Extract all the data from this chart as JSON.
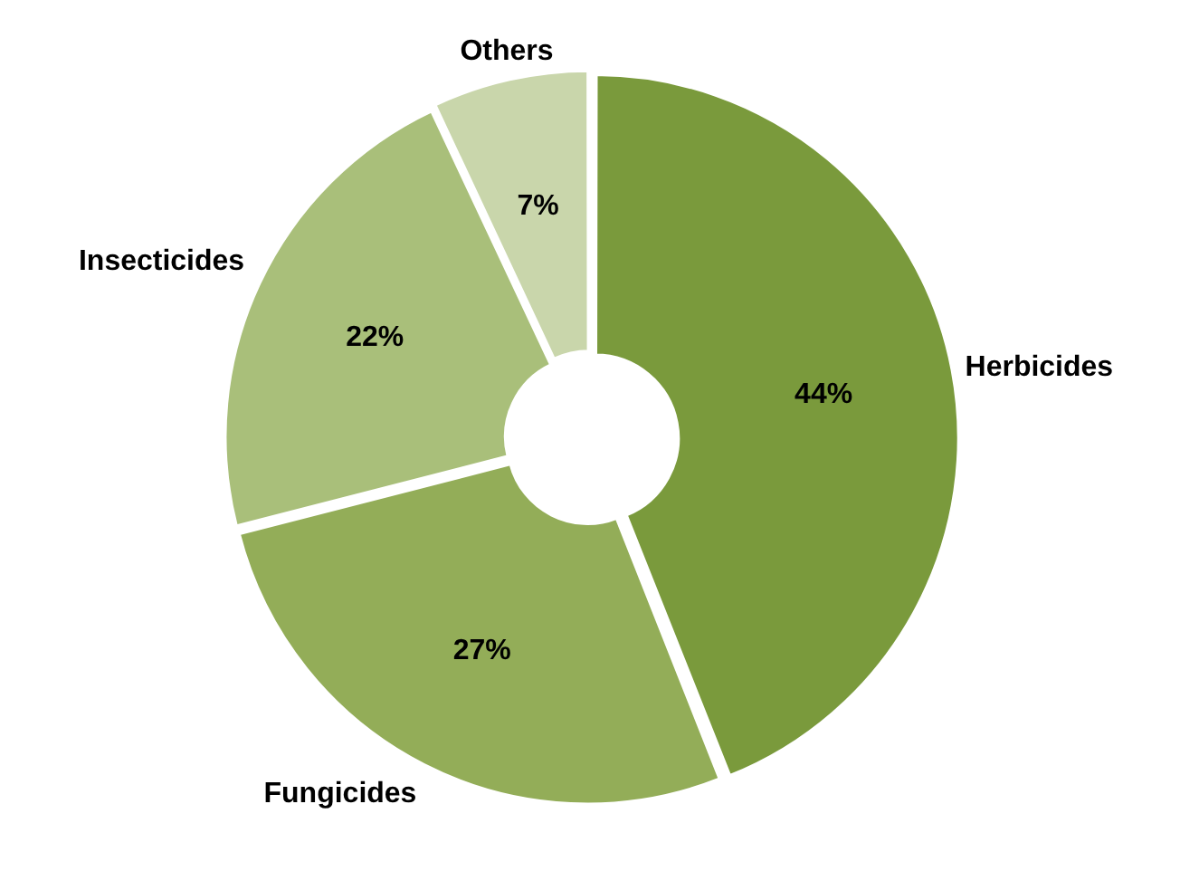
{
  "chart_data": {
    "type": "donut",
    "categories": [
      "Herbicides",
      "Fungicides",
      "Insecticides",
      "Others"
    ],
    "values": [
      44,
      27,
      22,
      7
    ],
    "colors": [
      "#7a9a3c",
      "#93ad58",
      "#a9bf7a",
      "#c9d6ab"
    ],
    "value_labels": [
      "44%",
      "27%",
      "22%",
      "7%"
    ]
  }
}
